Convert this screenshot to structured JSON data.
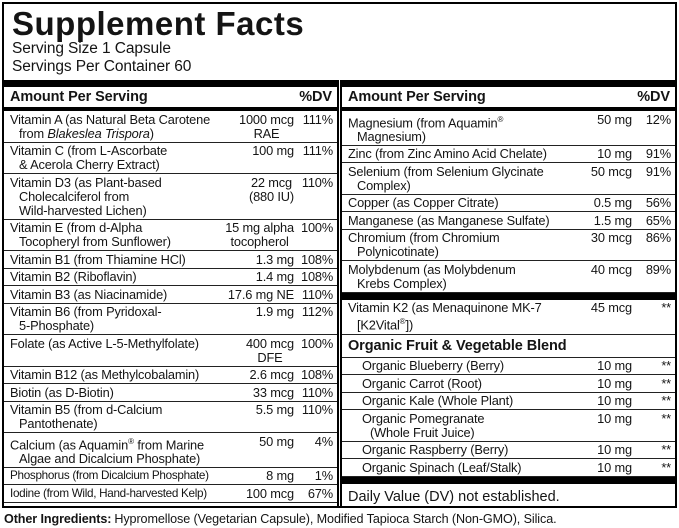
{
  "title": "Supplement Facts",
  "serving": {
    "size": "Serving Size 1 Capsule",
    "per_container": "Servings Per Container 60"
  },
  "table_header": {
    "amount": "Amount Per Serving",
    "dv": "%DV"
  },
  "left_column": {
    "rows": [
      {
        "type": "item",
        "name": "Vitamin A (as Natural Beta Carotene\nfrom *Blakeslea Trispora*)",
        "amount": "1000 mcg\nRAE",
        "dv": "111%"
      },
      {
        "type": "item",
        "name": "Vitamin C (from L-Ascorbate\n& Acerola Cherry Extract)",
        "amount": "100 mg",
        "dv": "111%"
      },
      {
        "type": "item",
        "name": "Vitamin D3 (as Plant-based\nCholecalciferol from\nWild-harvested Lichen)",
        "amount": "22 mcg\n(880 IU)",
        "dv": "110%"
      },
      {
        "type": "item",
        "name": "Vitamin E (from d-Alpha\nTocopheryl from Sunflower)",
        "amount": "15 mg alpha\ntocopherol",
        "dv": "100%"
      },
      {
        "type": "item",
        "name": "Vitamin B1 (from Thiamine HCl)",
        "amount": "1.3 mg",
        "dv": "108%"
      },
      {
        "type": "item",
        "name": "Vitamin B2 (Riboflavin)",
        "amount": "1.4 mg",
        "dv": "108%"
      },
      {
        "type": "item",
        "name": "Vitamin B3 (as Niacinamide)",
        "amount": "17.6 mg NE",
        "dv": "110%"
      },
      {
        "type": "item",
        "name": "Vitamin B6 (from Pyridoxal-\n5-Phosphate)",
        "amount": "1.9 mg",
        "dv": "112%"
      },
      {
        "type": "item",
        "name": "Folate (as Active L-5-Methylfolate)",
        "amount": "400 mcg\nDFE",
        "dv": "100%"
      },
      {
        "type": "item",
        "name": "Vitamin B12 (as Methylcobalamin)",
        "amount": "2.6 mcg",
        "dv": "108%"
      },
      {
        "type": "item",
        "name": "Biotin (as D-Biotin)",
        "amount": "33 mcg",
        "dv": "110%"
      },
      {
        "type": "item",
        "name": "Vitamin B5 (from d-Calcium\nPantothenate)",
        "amount": "5.5 mg",
        "dv": "110%"
      },
      {
        "type": "item",
        "name": "Calcium (as Aquamin® from Marine\nAlgae and Dicalcium Phosphate)",
        "amount": "50 mg",
        "dv": "4%"
      },
      {
        "type": "item",
        "name": "Phosphorus (from Dicalcium Phosphate)",
        "amount": "8 mg",
        "dv": "1%"
      },
      {
        "type": "item",
        "name": "Iodine (from Wild, Hand-harvested Kelp)",
        "amount": "100 mcg",
        "dv": "67%"
      }
    ]
  },
  "right_column": {
    "rows": [
      {
        "type": "item",
        "name": "Magnesium (from Aquamin®\nMagnesium)",
        "amount": "50 mg",
        "dv": "12%"
      },
      {
        "type": "item",
        "name": "Zinc (from Zinc Amino Acid Chelate)",
        "amount": "10 mg",
        "dv": "91%"
      },
      {
        "type": "item",
        "name": "Selenium (from Selenium Glycinate\nComplex)",
        "amount": "50 mcg",
        "dv": "91%"
      },
      {
        "type": "item",
        "name": "Copper (as Copper Citrate)",
        "amount": "0.5 mg",
        "dv": "56%"
      },
      {
        "type": "item",
        "name": "Manganese (as Manganese Sulfate)",
        "amount": "1.5 mg",
        "dv": "65%"
      },
      {
        "type": "item",
        "name": "Chromium (from Chromium\nPolynicotinate)",
        "amount": "30 mcg",
        "dv": "86%"
      },
      {
        "type": "item",
        "name": "Molybdenum (as Molybdenum\nKrebs Complex)",
        "amount": "40 mcg",
        "dv": "89%"
      },
      {
        "type": "bar"
      },
      {
        "type": "item",
        "name": "Vitamin K2 (as Menaquinone MK-7\n[K2Vital®])",
        "amount": "45 mcg",
        "dv": "**"
      },
      {
        "type": "section",
        "name": "Organic Fruit & Vegetable Blend"
      },
      {
        "type": "item",
        "indent": true,
        "name": "Organic Blueberry (Berry)",
        "amount": "10 mg",
        "dv": "**"
      },
      {
        "type": "item",
        "indent": true,
        "name": "Organic Carrot (Root)",
        "amount": "10 mg",
        "dv": "**"
      },
      {
        "type": "item",
        "indent": true,
        "name": "Organic Kale (Whole Plant)",
        "amount": "10 mg",
        "dv": "**"
      },
      {
        "type": "item",
        "indent": true,
        "name": "Organic Pomegranate\n(Whole Fruit Juice)",
        "amount": "10 mg",
        "dv": "**"
      },
      {
        "type": "item",
        "indent": true,
        "name": "Organic Raspberry (Berry)",
        "amount": "10 mg",
        "dv": "**"
      },
      {
        "type": "item",
        "indent": true,
        "name": "Organic Spinach (Leaf/Stalk)",
        "amount": "10 mg",
        "dv": "**"
      },
      {
        "type": "bar"
      },
      {
        "type": "note",
        "name": "**Daily Value (DV) not established."
      }
    ]
  },
  "other_ingredients": {
    "label": "Other Ingredients:",
    "text": "Hypromellose (Vegetarian Capsule), Modified Tapioca Starch (Non-GMO), Silica."
  },
  "colors": {
    "ink": "#000000",
    "background": "#ffffff"
  }
}
